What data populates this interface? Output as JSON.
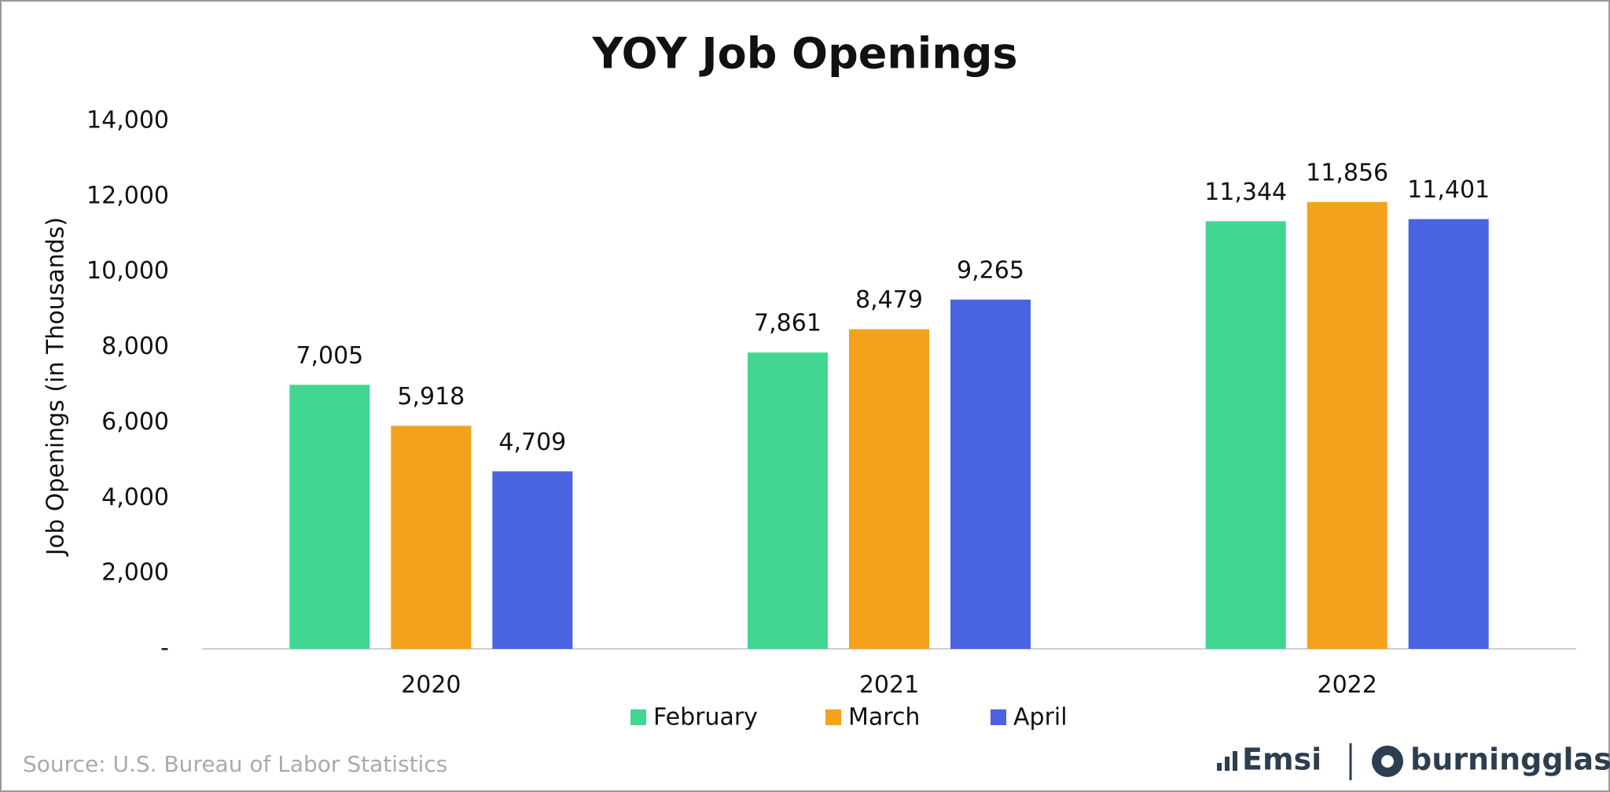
{
  "chart_data": {
    "type": "bar",
    "title": "YOY Job Openings",
    "y_label": "Job Openings (in Thousands)",
    "categories": [
      "2020",
      "2021",
      "2022"
    ],
    "series": [
      {
        "name": "February",
        "color": "#42d693",
        "values": [
          7005,
          7861,
          11344
        ],
        "value_labels": [
          "7,005",
          "7,861",
          "11,344"
        ]
      },
      {
        "name": "March",
        "color": "#f4a21e",
        "values": [
          5918,
          8479,
          11856
        ],
        "value_labels": [
          "5,918",
          "8,479",
          "11,856"
        ]
      },
      {
        "name": "April",
        "color": "#4a63e0",
        "values": [
          4709,
          9265,
          11401
        ],
        "value_labels": [
          "4,709",
          "9,265",
          "11,401"
        ]
      }
    ],
    "ylim": [
      0,
      14000
    ],
    "yticks": [
      {
        "value": 0,
        "label": "-"
      },
      {
        "value": 2000,
        "label": "2,000"
      },
      {
        "value": 4000,
        "label": "4,000"
      },
      {
        "value": 6000,
        "label": "6,000"
      },
      {
        "value": 8000,
        "label": "8,000"
      },
      {
        "value": 10000,
        "label": "10,000"
      },
      {
        "value": 12000,
        "label": "12,000"
      },
      {
        "value": 14000,
        "label": "14,000"
      }
    ],
    "grid": false,
    "legend": "bottom"
  },
  "source": "Source:  U.S. Bureau of Labor Statistics",
  "logos": [
    "Emsi",
    "burningglass"
  ]
}
